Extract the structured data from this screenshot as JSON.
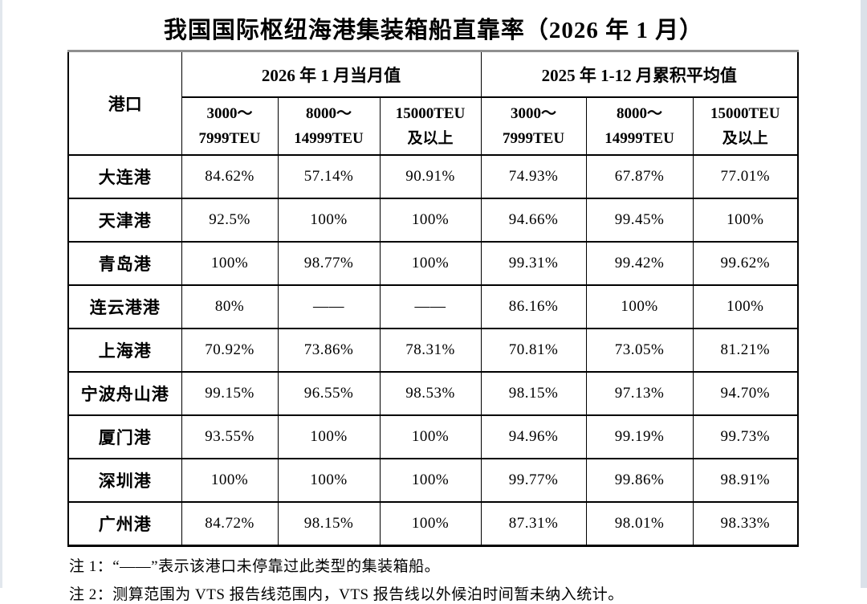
{
  "page": {
    "title": "我国国际枢纽海港集装箱船直靠率（2026 年 1 月）"
  },
  "table": {
    "corner_header": "港口",
    "groups": [
      {
        "label": "2026 年 1 月当月值"
      },
      {
        "label": "2025 年 1-12 月累积平均值"
      }
    ],
    "size_headers": [
      {
        "line1": "3000～",
        "line2": "7999TEU"
      },
      {
        "line1": "8000～",
        "line2": "14999TEU"
      },
      {
        "line1": "15000TEU",
        "line2": "及以上"
      }
    ],
    "rows": [
      {
        "port": "大连港",
        "values": [
          "84.62%",
          "57.14%",
          "90.91%",
          "74.93%",
          "67.87%",
          "77.01%"
        ]
      },
      {
        "port": "天津港",
        "values": [
          "92.5%",
          "100%",
          "100%",
          "94.66%",
          "99.45%",
          "100%"
        ]
      },
      {
        "port": "青岛港",
        "values": [
          "100%",
          "98.77%",
          "100%",
          "99.31%",
          "99.42%",
          "99.62%"
        ]
      },
      {
        "port": "连云港港",
        "values": [
          "80%",
          "——",
          "——",
          "86.16%",
          "100%",
          "100%"
        ]
      },
      {
        "port": "上海港",
        "values": [
          "70.92%",
          "73.86%",
          "78.31%",
          "70.81%",
          "73.05%",
          "81.21%"
        ]
      },
      {
        "port": "宁波舟山港",
        "values": [
          "99.15%",
          "96.55%",
          "98.53%",
          "98.15%",
          "97.13%",
          "94.70%"
        ]
      },
      {
        "port": "厦门港",
        "values": [
          "93.55%",
          "100%",
          "100%",
          "94.96%",
          "99.19%",
          "99.73%"
        ]
      },
      {
        "port": "深圳港",
        "values": [
          "100%",
          "100%",
          "100%",
          "99.77%",
          "99.86%",
          "98.91%"
        ]
      },
      {
        "port": "广州港",
        "values": [
          "84.72%",
          "98.15%",
          "100%",
          "87.31%",
          "98.01%",
          "98.33%"
        ]
      }
    ]
  },
  "notes": [
    "注 1：“——”表示该港口未停靠过此类型的集装箱船。",
    "注 2：测算范围为 VTS 报告线范围内，VTS 报告线以外候泊时间暂未纳入统计。"
  ],
  "colors": {
    "text": "#000000",
    "table_border": "#000000",
    "table_top_border": "#8f8f8f",
    "scrollbar_track": "#dbe1e9"
  }
}
